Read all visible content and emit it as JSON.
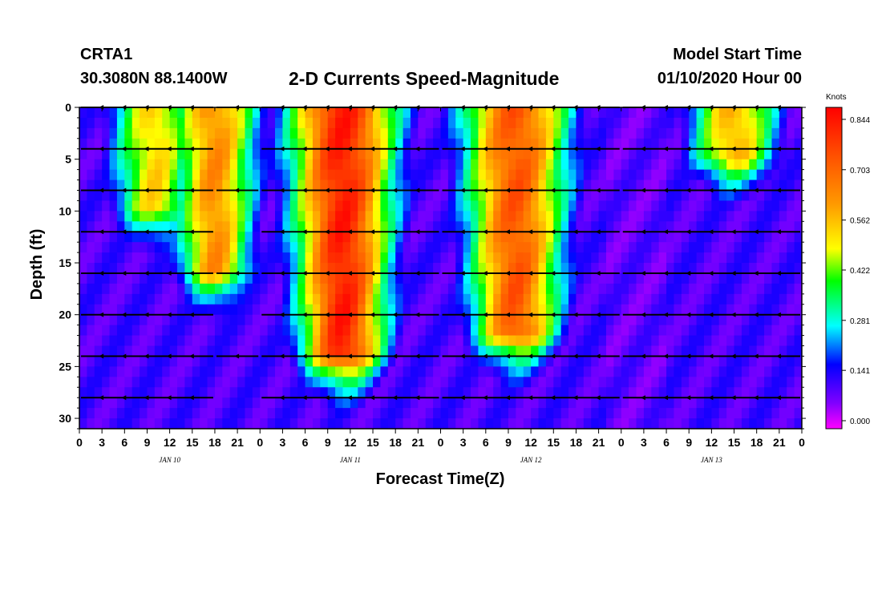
{
  "header": {
    "station": "CRTA1",
    "coordinates": "30.3080N 88.1400W",
    "title": "2-D Currents Speed-Magnitude",
    "start_label": "Model Start Time",
    "start_value": "01/10/2020 Hour 00"
  },
  "chart_data": {
    "type": "heatmap",
    "title": "2-D Currents Speed-Magnitude",
    "xlabel": "Forecast Time(Z)",
    "ylabel": "Depth (ft)",
    "xlim": [
      0,
      96
    ],
    "ylim": [
      0,
      31
    ],
    "x_tick_labels": [
      "0",
      "3",
      "6",
      "9",
      "12",
      "15",
      "18",
      "21",
      "0",
      "3",
      "6",
      "9",
      "12",
      "15",
      "18",
      "21",
      "0",
      "3",
      "6",
      "9",
      "12",
      "15",
      "18",
      "21",
      "0",
      "3",
      "6",
      "9",
      "12",
      "15",
      "18",
      "21",
      "0"
    ],
    "date_labels": [
      {
        "label": "JAN 10",
        "hour": 12
      },
      {
        "label": "JAN 11",
        "hour": 36
      },
      {
        "label": "JAN 12",
        "hour": 60
      },
      {
        "label": "JAN 13",
        "hour": 84
      }
    ],
    "y_ticks": [
      0,
      5,
      10,
      15,
      20,
      25,
      30
    ],
    "colorbar": {
      "unit": "Knots",
      "range": [
        0.0,
        0.9
      ],
      "tick_labels": [
        "0.844",
        "0.703",
        "0.562",
        "0.422",
        "0.281",
        "0.141",
        "0.000"
      ],
      "tick_values": [
        0.844,
        0.703,
        0.562,
        0.422,
        0.281,
        0.141,
        0.0
      ]
    },
    "speed_peaks": [
      {
        "hour": 10,
        "depth_max": 10,
        "value": 0.55
      },
      {
        "hour": 18,
        "depth_max": 16,
        "value": 0.65
      },
      {
        "hour": 35,
        "depth_max": 24,
        "value": 0.85
      },
      {
        "hour": 58,
        "depth_max": 22,
        "value": 0.75
      },
      {
        "hour": 87,
        "depth_max": 5,
        "value": 0.6
      }
    ],
    "vector_depths": [
      0,
      4,
      8,
      12,
      16,
      20,
      24,
      28
    ],
    "vector_direction": "mostly westward"
  }
}
